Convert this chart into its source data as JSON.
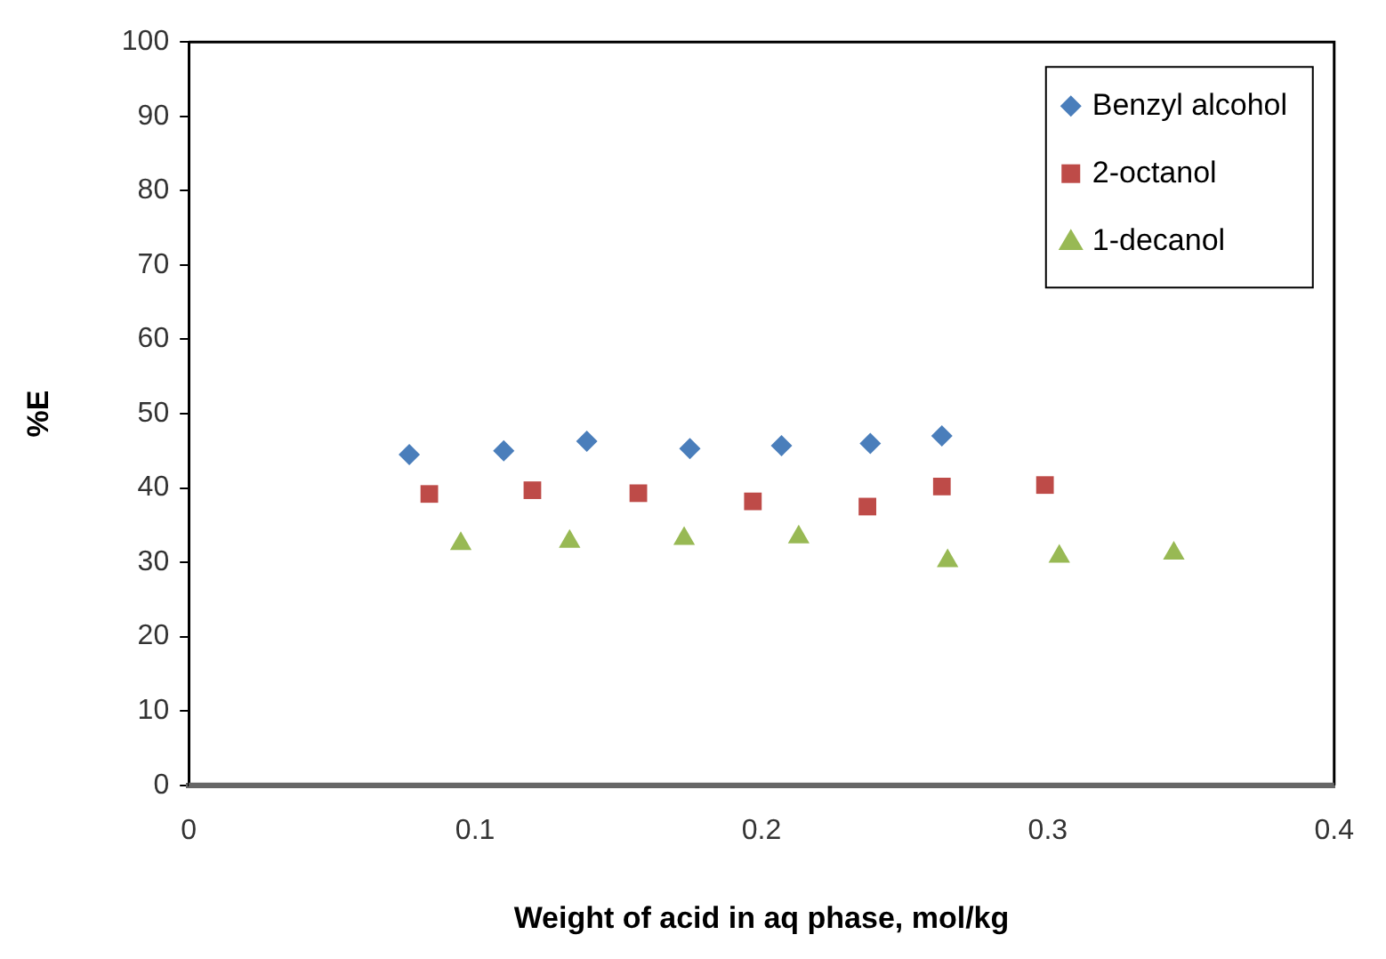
{
  "chart_data": {
    "type": "scatter",
    "xlabel": "Weight of acid in aq phase, mol/kg",
    "ylabel": "%E",
    "xlim": [
      0,
      0.4
    ],
    "xticks": [
      0,
      0.1,
      0.2,
      0.3,
      0.4
    ],
    "ylim": [
      0,
      100
    ],
    "yticks": [
      0,
      10,
      20,
      30,
      40,
      50,
      60,
      70,
      80,
      90,
      100
    ],
    "grid": false,
    "legend": "top right",
    "series": [
      {
        "name": "Benzyl alcohol",
        "color": "#4a7ebb",
        "marker": "diamond",
        "x": [
          0.077,
          0.11,
          0.139,
          0.175,
          0.207,
          0.238,
          0.263
        ],
        "values": [
          44.5,
          45,
          46.3,
          45.3,
          45.7,
          46,
          47
        ]
      },
      {
        "name": "2-octanol",
        "color": "#be4b48",
        "marker": "square",
        "x": [
          0.084,
          0.12,
          0.157,
          0.197,
          0.237,
          0.263,
          0.299
        ],
        "values": [
          39.2,
          39.7,
          39.3,
          38.2,
          37.5,
          40.2,
          40.4
        ]
      },
      {
        "name": "1-decanol",
        "color": "#98b954",
        "marker": "triangle",
        "x": [
          0.095,
          0.133,
          0.173,
          0.213,
          0.265,
          0.304,
          0.344
        ],
        "values": [
          32.5,
          32.8,
          33.2,
          33.4,
          30.2,
          30.8,
          31.2
        ]
      }
    ]
  }
}
